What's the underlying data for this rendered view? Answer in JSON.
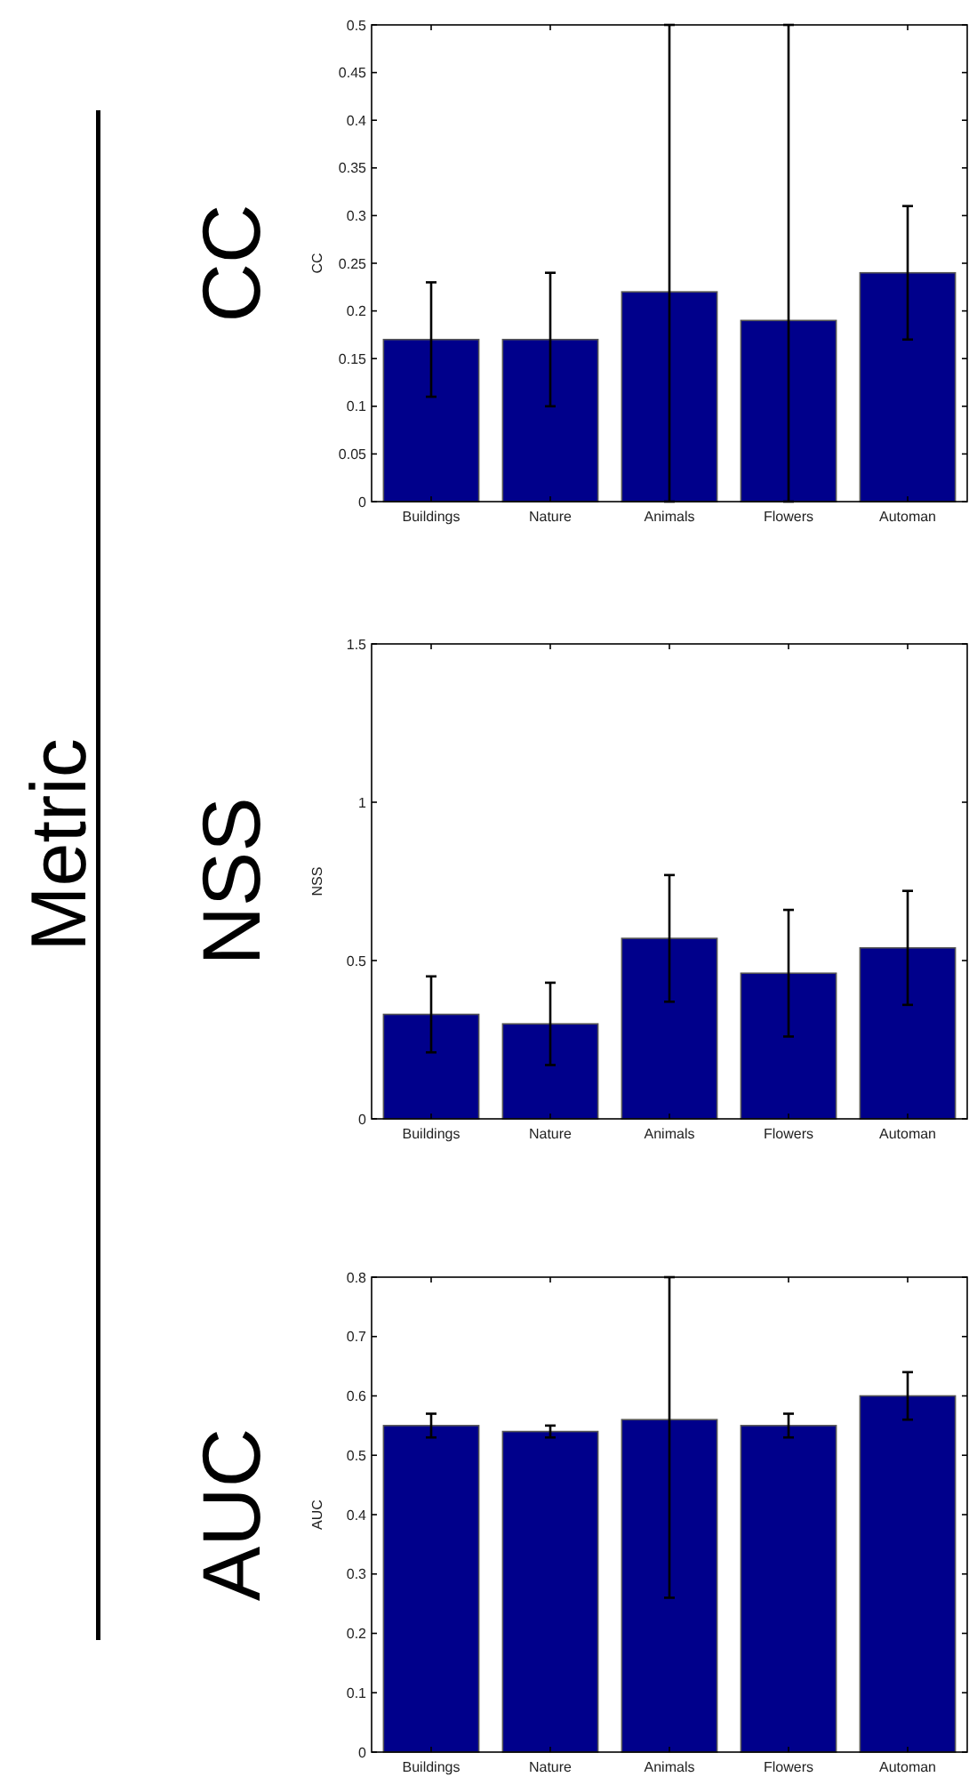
{
  "chart_data": [
    {
      "type": "bar",
      "title": "CC",
      "ylabel": "CC",
      "annotations": [
        "Metric"
      ],
      "categories": [
        "Buildings",
        "Nature",
        "Animals",
        "Flowers",
        "Automan"
      ],
      "values": [
        0.17,
        0.17,
        0.22,
        0.19,
        0.24
      ],
      "color": "#00008b",
      "errors": [
        [
          0.11,
          0.23
        ],
        [
          0.1,
          0.24
        ],
        [
          0,
          0.5
        ],
        [
          0,
          0.5
        ],
        [
          0.17,
          0.31
        ]
      ],
      "ylim": [
        0,
        0.5
      ],
      "yticks": [
        0,
        0.05,
        0.1,
        0.15,
        0.2,
        0.25,
        0.3,
        0.35,
        0.4,
        0.45,
        0.5
      ]
    },
    {
      "type": "bar",
      "title": "NSS",
      "ylabel": "NSS",
      "categories": [
        "Buildings",
        "Nature",
        "Animals",
        "Flowers",
        "Automan"
      ],
      "values": [
        0.33,
        0.3,
        0.57,
        0.46,
        0.54
      ],
      "color": "#00008b",
      "errors": [
        [
          0.21,
          0.45
        ],
        [
          0.17,
          0.43
        ],
        [
          0.37,
          0.77
        ],
        [
          0.26,
          0.66
        ],
        [
          0.36,
          0.72
        ]
      ],
      "ylim": [
        0,
        1.5
      ],
      "yticks": [
        0,
        0.5,
        1,
        1.5
      ]
    },
    {
      "type": "bar",
      "title": "AUC",
      "ylabel": "AUC",
      "categories": [
        "Buildings",
        "Nature",
        "Animals",
        "Flowers",
        "Automan"
      ],
      "values": [
        0.55,
        0.54,
        0.56,
        0.55,
        0.6
      ],
      "color": "#00008b",
      "errors": [
        [
          0.53,
          0.57
        ],
        [
          0.53,
          0.55
        ],
        [
          0.26,
          0.8
        ],
        [
          0.53,
          0.57
        ],
        [
          0.56,
          0.64
        ]
      ],
      "ylim": [
        0,
        0.8
      ],
      "yticks": [
        0,
        0.1,
        0.2,
        0.3,
        0.4,
        0.5,
        0.6,
        0.7,
        0.8
      ]
    }
  ]
}
